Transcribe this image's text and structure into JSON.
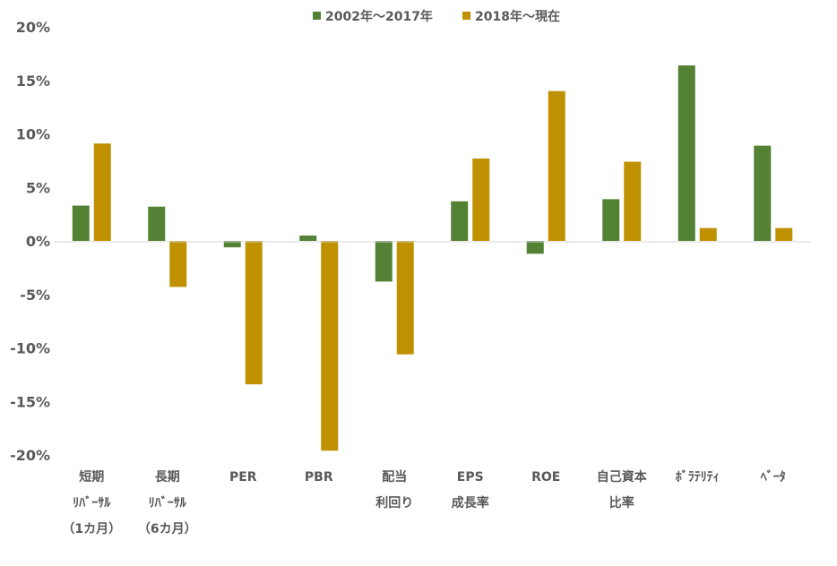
{
  "chart_data": {
    "type": "bar",
    "title": "",
    "xlabel": "",
    "ylabel": "",
    "ylim": [
      -20,
      20
    ],
    "yticks": [
      20,
      15,
      10,
      5,
      0,
      -5,
      -10,
      -15,
      -20
    ],
    "ytick_labels": [
      "20%",
      "15%",
      "10%",
      "5%",
      "0%",
      "-5%",
      "-10%",
      "-15%",
      "-20%"
    ],
    "grid": false,
    "legend_position": "top-center",
    "categories": [
      [
        "短期",
        "ﾘﾊﾞｰｻﾙ",
        "（1カ月）"
      ],
      [
        "長期",
        "ﾘﾊﾞｰｻﾙ",
        "（6カ月）"
      ],
      [
        "PER"
      ],
      [
        "PBR"
      ],
      [
        "配当",
        "利回り"
      ],
      [
        "EPS",
        "成長率"
      ],
      [
        "ROE"
      ],
      [
        "自己資本",
        "比率"
      ],
      [
        "ﾎﾞﾗﾃﾘﾃｨ"
      ],
      [
        "ﾍﾞｰﾀ"
      ]
    ],
    "series": [
      {
        "name": "2002年～2017年",
        "color": "#548235",
        "values": [
          3.3,
          3.2,
          -0.6,
          0.5,
          -3.8,
          3.7,
          -1.2,
          3.9,
          16.4,
          8.9
        ]
      },
      {
        "name": "2018年～現在",
        "color": "#BF9000",
        "values": [
          9.1,
          -4.3,
          -13.4,
          -19.6,
          -10.6,
          7.7,
          14.0,
          7.4,
          1.2,
          1.2
        ]
      }
    ]
  }
}
